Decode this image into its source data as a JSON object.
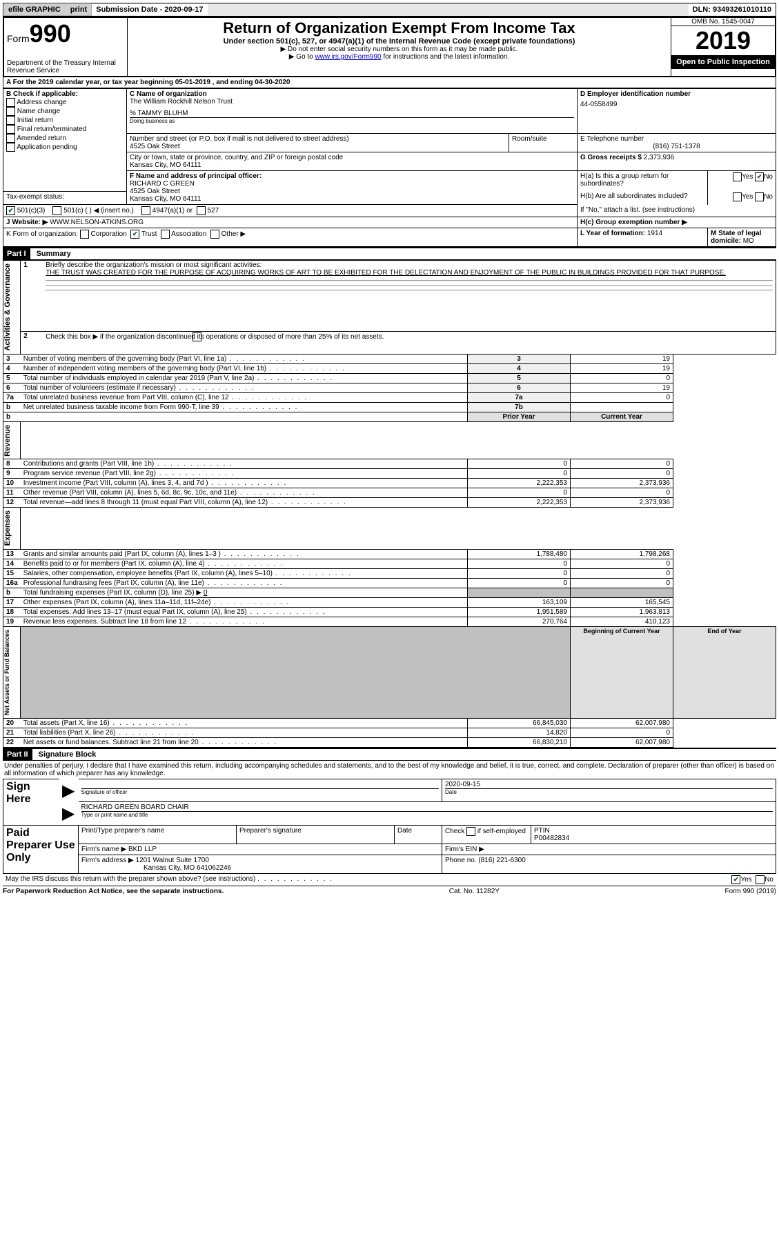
{
  "topbar": {
    "efile": "efile GRAPHIC",
    "print": "print",
    "sub_label": "Submission Date - 2020-09-17",
    "dln": "DLN: 93493261010110"
  },
  "header": {
    "form_label": "Form",
    "form_num": "990",
    "dept": "Department of the Treasury\nInternal Revenue Service",
    "title": "Return of Organization Exempt From Income Tax",
    "subtitle": "Under section 501(c), 527, or 4947(a)(1) of the Internal Revenue Code (except private foundations)",
    "instr1": "▶ Do not enter social security numbers on this form as it may be made public.",
    "instr2_pre": "▶ Go to ",
    "instr2_link": "www.irs.gov/Form990",
    "instr2_post": " for instructions and the latest information.",
    "omb": "OMB No. 1545-0047",
    "year": "2019",
    "open": "Open to Public Inspection"
  },
  "lineA": "A  For the 2019 calendar year, or tax year beginning 05-01-2019    , and ending 04-30-2020",
  "boxB": {
    "label": "B Check if applicable:",
    "opts": [
      "Address change",
      "Name change",
      "Initial return",
      "Final return/terminated",
      "Amended return",
      "Application pending"
    ]
  },
  "boxC": {
    "label": "C Name of organization",
    "name": "The William Rockhill Nelson Trust",
    "care": "% TAMMY BLUHM",
    "dba_label": "Doing business as",
    "addr_label": "Number and street (or P.O. box if mail is not delivered to street address)",
    "room_label": "Room/suite",
    "addr": "4525 Oak Street",
    "city_label": "City or town, state or province, country, and ZIP or foreign postal code",
    "city": "Kansas City, MO  64111"
  },
  "boxD": {
    "label": "D Employer identification number",
    "val": "44-0558499"
  },
  "boxE": {
    "label": "E Telephone number",
    "val": "(816) 751-1378"
  },
  "boxG": {
    "label": "G Gross receipts $",
    "val": "2,373,936"
  },
  "boxF": {
    "label": "F  Name and address of principal officer:",
    "name": "RICHARD C GREEN",
    "addr": "4525 Oak Street",
    "city": "Kansas City, MO  64111"
  },
  "boxH": {
    "a": "H(a)  Is this a group return for subordinates?",
    "b": "H(b)  Are all subordinates included?",
    "note": "If \"No,\" attach a list. (see instructions)",
    "c": "H(c)  Group exemption number ▶"
  },
  "taxexempt": {
    "label": "Tax-exempt status:",
    "o1": "501(c)(3)",
    "o2": "501(c) (  ) ◀ (insert no.)",
    "o3": "4947(a)(1) or",
    "o4": "527"
  },
  "boxJ": {
    "label": "J   Website: ▶",
    "val": "WWW.NELSON-ATKINS.ORG"
  },
  "boxK": {
    "label": "K Form of organization:",
    "o1": "Corporation",
    "o2": "Trust",
    "o3": "Association",
    "o4": "Other ▶"
  },
  "boxL": {
    "label": "L Year of formation:",
    "val": "1914"
  },
  "boxM": {
    "label": "M State of legal domicile:",
    "val": "MO"
  },
  "part1": {
    "hdr": "Part I",
    "title": "Summary"
  },
  "summary": {
    "l1_label": "Briefly describe the organization's mission or most significant activities:",
    "l1_text": "THE TRUST WAS CREATED FOR THE PURPOSE OF ACQUIRING WORKS OF ART TO BE EXHIBITED FOR THE DELECTATION AND ENJOYMENT OF THE PUBLIC IN BUILDINGS PROVIDED FOR THAT PURPOSE.",
    "l2": "Check this box ▶         if the organization discontinued its operations or disposed of more than 25% of its net assets.",
    "rows_ag": [
      {
        "n": "3",
        "t": "Number of voting members of the governing body (Part VI, line 1a)",
        "b": "3",
        "v": "19"
      },
      {
        "n": "4",
        "t": "Number of independent voting members of the governing body (Part VI, line 1b)",
        "b": "4",
        "v": "19"
      },
      {
        "n": "5",
        "t": "Total number of individuals employed in calendar year 2019 (Part V, line 2a)",
        "b": "5",
        "v": "0"
      },
      {
        "n": "6",
        "t": "Total number of volunteers (estimate if necessary)",
        "b": "6",
        "v": "19"
      },
      {
        "n": "7a",
        "t": "Total unrelated business revenue from Part VIII, column (C), line 12",
        "b": "7a",
        "v": "0"
      },
      {
        "n": "b",
        "t": "Net unrelated business taxable income from Form 990-T, line 39",
        "b": "7b",
        "v": ""
      }
    ],
    "col_prior": "Prior Year",
    "col_curr": "Current Year",
    "rows_rev": [
      {
        "n": "8",
        "t": "Contributions and grants (Part VIII, line 1h)",
        "p": "0",
        "c": "0"
      },
      {
        "n": "9",
        "t": "Program service revenue (Part VIII, line 2g)",
        "p": "0",
        "c": "0"
      },
      {
        "n": "10",
        "t": "Investment income (Part VIII, column (A), lines 3, 4, and 7d )",
        "p": "2,222,353",
        "c": "2,373,936"
      },
      {
        "n": "11",
        "t": "Other revenue (Part VIII, column (A), lines 5, 6d, 8c, 9c, 10c, and 11e)",
        "p": "0",
        "c": "0"
      },
      {
        "n": "12",
        "t": "Total revenue—add lines 8 through 11 (must equal Part VIII, column (A), line 12)",
        "p": "2,222,353",
        "c": "2,373,936"
      }
    ],
    "rows_exp": [
      {
        "n": "13",
        "t": "Grants and similar amounts paid (Part IX, column (A), lines 1–3 )",
        "p": "1,788,480",
        "c": "1,798,268"
      },
      {
        "n": "14",
        "t": "Benefits paid to or for members (Part IX, column (A), line 4)",
        "p": "0",
        "c": "0"
      },
      {
        "n": "15",
        "t": "Salaries, other compensation, employee benefits (Part IX, column (A), lines 5–10)",
        "p": "0",
        "c": "0"
      },
      {
        "n": "16a",
        "t": "Professional fundraising fees (Part IX, column (A), line 11e)",
        "p": "0",
        "c": "0"
      }
    ],
    "row_16b": {
      "n": "b",
      "t": "Total fundraising expenses (Part IX, column (D), line 25) ▶",
      "v": "0"
    },
    "rows_exp2": [
      {
        "n": "17",
        "t": "Other expenses (Part IX, column (A), lines 11a–11d, 11f–24e)",
        "p": "163,109",
        "c": "165,545"
      },
      {
        "n": "18",
        "t": "Total expenses. Add lines 13–17 (must equal Part IX, column (A), line 25)",
        "p": "1,951,589",
        "c": "1,963,813"
      },
      {
        "n": "19",
        "t": "Revenue less expenses. Subtract line 18 from line 12",
        "p": "270,764",
        "c": "410,123"
      }
    ],
    "col_beg": "Beginning of Current Year",
    "col_end": "End of Year",
    "rows_net": [
      {
        "n": "20",
        "t": "Total assets (Part X, line 16)",
        "p": "66,845,030",
        "c": "62,007,980"
      },
      {
        "n": "21",
        "t": "Total liabilities (Part X, line 26)",
        "p": "14,820",
        "c": "0"
      },
      {
        "n": "22",
        "t": "Net assets or fund balances. Subtract line 21 from line 20",
        "p": "66,830,210",
        "c": "62,007,980"
      }
    ]
  },
  "sidelabels": {
    "ag": "Activities & Governance",
    "rev": "Revenue",
    "exp": "Expenses",
    "net": "Net Assets or Fund Balances"
  },
  "part2": {
    "hdr": "Part II",
    "title": "Signature Block"
  },
  "sig": {
    "penalty": "Under penalties of perjury, I declare that I have examined this return, including accompanying schedules and statements, and to the best of my knowledge and belief, it is true, correct, and complete. Declaration of preparer (other than officer) is based on all information of which preparer has any knowledge.",
    "sign_here": "Sign Here",
    "sig_officer": "Signature of officer",
    "date_label": "Date",
    "date": "2020-09-15",
    "name": "RICHARD GREEN  BOARD CHAIR",
    "name_label": "Type or print name and title",
    "paid": "Paid Preparer Use Only",
    "pt_name_label": "Print/Type preparer's name",
    "pt_sig_label": "Preparer's signature",
    "pt_date_label": "Date",
    "check_self": "Check          if self-employed",
    "ptin_label": "PTIN",
    "ptin": "P00482834",
    "firm_name_label": "Firm's name    ▶",
    "firm_name": "BKD LLP",
    "firm_ein_label": "Firm's EIN ▶",
    "firm_addr_label": "Firm's address ▶",
    "firm_addr1": "1201 Walnut Suite 1700",
    "firm_addr2": "Kansas City, MO  641062246",
    "firm_phone_label": "Phone no.",
    "firm_phone": "(816) 221-6300",
    "discuss": "May the IRS discuss this return with the preparer shown above? (see instructions)"
  },
  "footer": {
    "left": "For Paperwork Reduction Act Notice, see the separate instructions.",
    "mid": "Cat. No. 11282Y",
    "right": "Form 990 (2019)"
  },
  "yesno": {
    "yes": "Yes",
    "no": "No"
  }
}
